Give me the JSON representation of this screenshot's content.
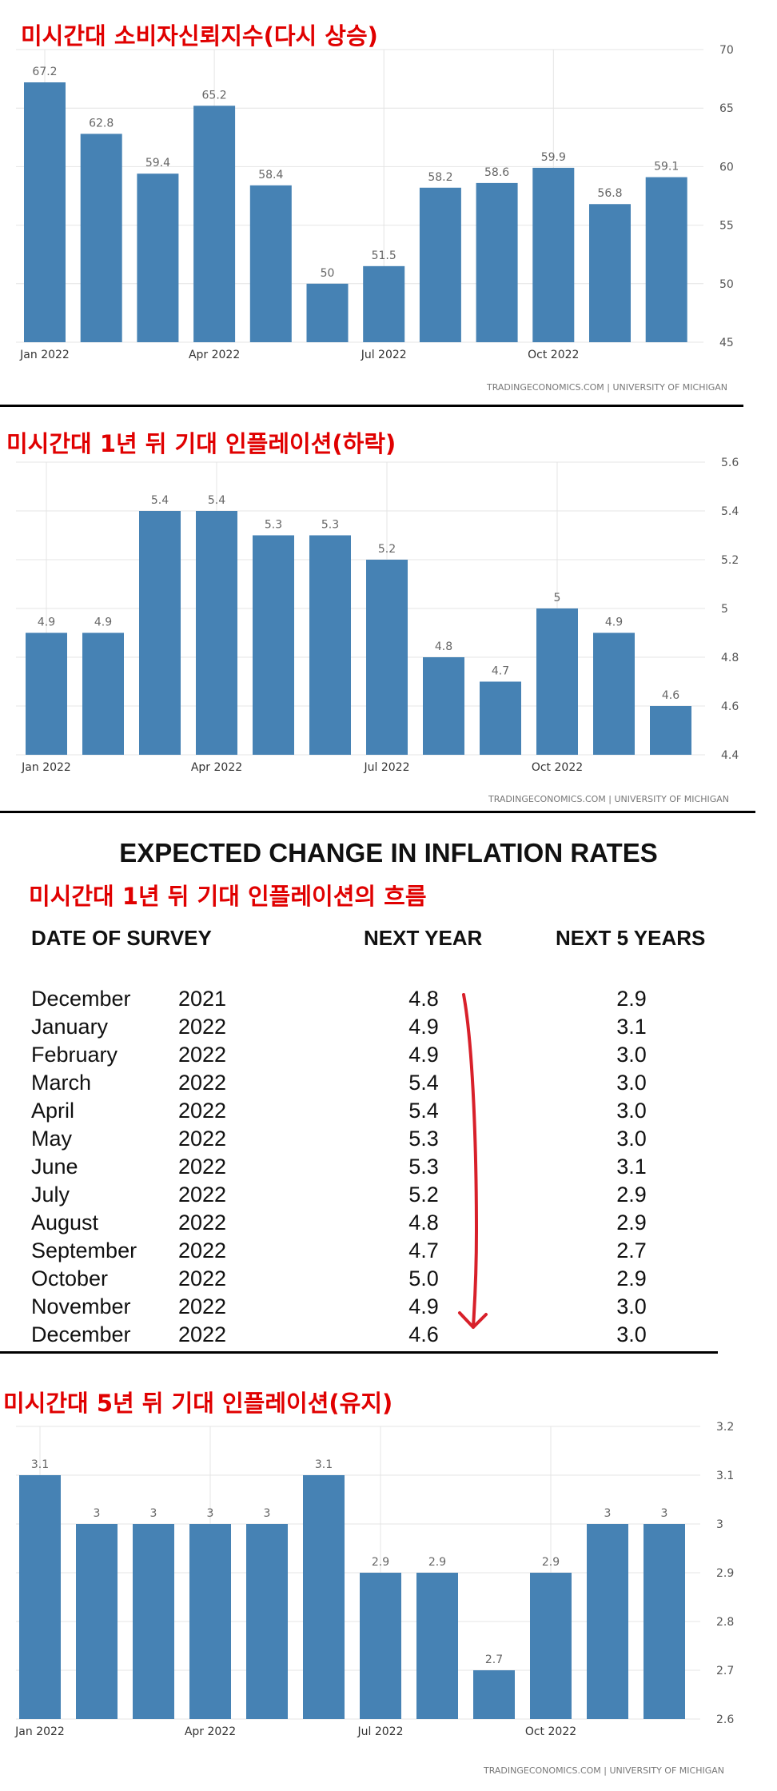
{
  "charts": [
    {
      "title": "미시간대 소비자신뢰지수(다시 상승)",
      "source": "TRADINGECONOMICS.COM  |  UNIVERSITY OF MICHIGAN"
    },
    {
      "title": "미시간대 1년 뒤 기대 인플레이션(하락)",
      "source": "TRADINGECONOMICS.COM  |  UNIVERSITY OF MICHIGAN"
    },
    {
      "title": "미시간대 5년 뒤 기대 인플레이션(유지)",
      "source": "TRADINGECONOMICS.COM  |  UNIVERSITY OF MICHIGAN"
    }
  ],
  "table": {
    "heading": "EXPECTED CHANGE IN INFLATION RATES",
    "subtitle": "미시간대 1년 뒤 기대 인플레이션의 흐름",
    "col_date": "DATE OF SURVEY",
    "col_next_year": "NEXT YEAR",
    "col_next5": "NEXT 5 YEARS",
    "rows": [
      {
        "month": "December",
        "year": "2021",
        "next_year": "4.8",
        "next5": "2.9"
      },
      {
        "month": "January",
        "year": "2022",
        "next_year": "4.9",
        "next5": "3.1"
      },
      {
        "month": "February",
        "year": "2022",
        "next_year": "4.9",
        "next5": "3.0"
      },
      {
        "month": "March",
        "year": "2022",
        "next_year": "5.4",
        "next5": "3.0"
      },
      {
        "month": "April",
        "year": "2022",
        "next_year": "5.4",
        "next5": "3.0"
      },
      {
        "month": "May",
        "year": "2022",
        "next_year": "5.3",
        "next5": "3.0"
      },
      {
        "month": "June",
        "year": "2022",
        "next_year": "5.3",
        "next5": "3.1"
      },
      {
        "month": "July",
        "year": "2022",
        "next_year": "5.2",
        "next5": "2.9"
      },
      {
        "month": "August",
        "year": "2022",
        "next_year": "4.8",
        "next5": "2.9"
      },
      {
        "month": "September",
        "year": "2022",
        "next_year": "4.7",
        "next5": "2.7"
      },
      {
        "month": "October",
        "year": "2022",
        "next_year": "5.0",
        "next5": "2.9"
      },
      {
        "month": "November",
        "year": "2022",
        "next_year": "4.9",
        "next5": "3.0"
      },
      {
        "month": "December",
        "year": "2022",
        "next_year": "4.6",
        "next5": "3.0"
      }
    ],
    "arrow_color": "#d8202a"
  },
  "chart_data": [
    {
      "type": "bar",
      "title": "미시간대 소비자신뢰지수(다시 상승)",
      "values": [
        67.2,
        62.8,
        59.4,
        65.2,
        58.4,
        50,
        51.5,
        58.2,
        58.6,
        59.9,
        56.8,
        59.1
      ],
      "labels": [
        "67.2",
        "62.8",
        "59.4",
        "65.2",
        "58.4",
        "50",
        "51.5",
        "58.2",
        "58.6",
        "59.9",
        "56.8",
        "59.1"
      ],
      "xtick_labels": [
        "Jan 2022",
        "Apr 2022",
        "Jul 2022",
        "Oct 2022"
      ],
      "xtick_bar_index": [
        0,
        3,
        6,
        9
      ],
      "yticks": [
        "70",
        "65",
        "60",
        "55",
        "50",
        "45"
      ],
      "ylim": [
        45,
        70
      ],
      "grid": true,
      "bar_color": "#4682b4"
    },
    {
      "type": "bar",
      "title": "미시간대 1년 뒤 기대 인플레이션(하락)",
      "values": [
        4.9,
        4.9,
        5.4,
        5.4,
        5.3,
        5.3,
        5.2,
        4.8,
        4.7,
        5,
        4.9,
        4.6
      ],
      "labels": [
        "4.9",
        "4.9",
        "5.4",
        "5.4",
        "5.3",
        "5.3",
        "5.2",
        "4.8",
        "4.7",
        "5",
        "4.9",
        "4.6"
      ],
      "xtick_labels": [
        "Jan 2022",
        "Apr 2022",
        "Jul 2022",
        "Oct 2022"
      ],
      "xtick_bar_index": [
        0,
        3,
        6,
        9
      ],
      "yticks": [
        "5.6",
        "5.4",
        "5.2",
        "5",
        "4.8",
        "4.6",
        "4.4"
      ],
      "ylim": [
        4.4,
        5.6
      ],
      "grid": true,
      "bar_color": "#4682b4"
    },
    {
      "type": "bar",
      "title": "미시간대 5년 뒤 기대 인플레이션(유지)",
      "values": [
        3.1,
        3,
        3,
        3,
        3,
        3.1,
        2.9,
        2.9,
        2.7,
        2.9,
        3,
        3
      ],
      "labels": [
        "3.1",
        "3",
        "3",
        "3",
        "3",
        "3.1",
        "2.9",
        "2.9",
        "2.7",
        "2.9",
        "3",
        "3"
      ],
      "xtick_labels": [
        "Jan 2022",
        "Apr 2022",
        "Jul 2022",
        "Oct 2022"
      ],
      "xtick_bar_index": [
        0,
        3,
        6,
        9
      ],
      "yticks": [
        "3.2",
        "3.1",
        "3",
        "2.9",
        "2.8",
        "2.7",
        "2.6"
      ],
      "ylim": [
        2.6,
        3.2
      ],
      "grid": true,
      "bar_color": "#4682b4"
    }
  ]
}
